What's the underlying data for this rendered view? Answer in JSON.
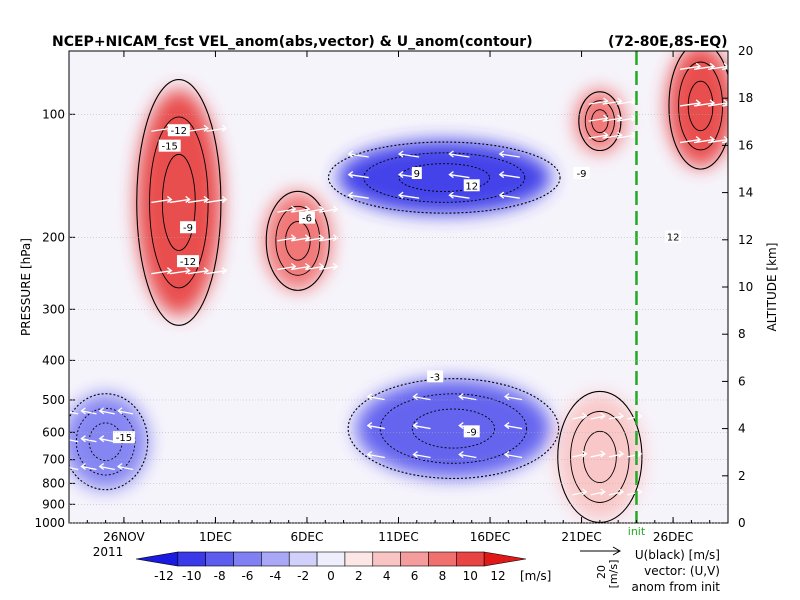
{
  "chart_data": {
    "type": "heatmap",
    "title": "NCEP+NICAM_fcst VEL_anom(abs,vector) & U_anom(contour)",
    "region": "(72-80E,8S-EQ)",
    "ylabel": "PRESSURE [hPa]",
    "ylabel_right": "ALTITUDE [km]",
    "yaxis": {
      "scale": "log",
      "range": [
        1000,
        70
      ],
      "ticks": [
        {
          "value": 100,
          "label": "100"
        },
        {
          "value": 200,
          "label": "200"
        },
        {
          "value": 300,
          "label": "300"
        },
        {
          "value": 400,
          "label": "400"
        },
        {
          "value": 500,
          "label": "500"
        },
        {
          "value": 600,
          "label": "600"
        },
        {
          "value": 700,
          "label": "700"
        },
        {
          "value": 800,
          "label": "800"
        },
        {
          "value": 900,
          "label": "900"
        },
        {
          "value": 1000,
          "label": "1000"
        }
      ]
    },
    "yaxis_right": {
      "range": [
        0,
        20
      ],
      "ticks": [
        "0",
        "2",
        "4",
        "6",
        "8",
        "10",
        "12",
        "14",
        "16",
        "18",
        "20"
      ]
    },
    "xaxis": {
      "range": [
        "2011-11-23",
        "2011-12-29"
      ],
      "ticks": [
        {
          "date": "2011-11-26",
          "label": "26NOV"
        },
        {
          "date": "2011-12-01",
          "label": "1DEC"
        },
        {
          "date": "2011-12-06",
          "label": "6DEC"
        },
        {
          "date": "2011-12-11",
          "label": "11DEC"
        },
        {
          "date": "2011-12-16",
          "label": "16DEC"
        },
        {
          "date": "2011-12-21",
          "label": "21DEC"
        },
        {
          "date": "2011-12-26",
          "label": "26DEC"
        }
      ],
      "year_label": "2011"
    },
    "init_line": {
      "date": "2011-12-24",
      "label": "init",
      "color": "#22aa22"
    },
    "colorbar": {
      "unit": "[m/s]",
      "levels": [
        -12,
        -10,
        -8,
        -6,
        -4,
        -2,
        0,
        2,
        4,
        6,
        8,
        10,
        12
      ],
      "tick_labels": [
        "-12",
        "-10",
        "-8",
        "-6",
        "-4",
        "-2",
        "0",
        "2",
        "4",
        "6",
        "8",
        "10",
        "12"
      ],
      "colors": [
        "#1a1ae0",
        "#3a3ae8",
        "#5c5cee",
        "#8080f2",
        "#a8a8f6",
        "#d0d0fa",
        "#eeeefc",
        "#fce6e6",
        "#f9c4c4",
        "#f59c9c",
        "#f07070",
        "#e84444",
        "#e01818"
      ]
    },
    "reference_vector": {
      "value_label": "20",
      "unit_label": "[m/s]"
    },
    "legend_notes": [
      "U(black) [m/s]",
      "vector: (U,V)",
      "anom from init"
    ],
    "anomaly_regions": [
      {
        "date_start": "2011-11-27",
        "date_end": "2011-12-01",
        "p_top": 90,
        "p_bottom": 300,
        "value": 10
      },
      {
        "date_start": "2011-12-04",
        "date_end": "2011-12-07",
        "p_top": 160,
        "p_bottom": 260,
        "value": 8
      },
      {
        "date_start": "2011-12-08",
        "date_end": "2011-12-19",
        "p_top": 120,
        "p_bottom": 170,
        "value": -10
      },
      {
        "date_start": "2011-12-09",
        "date_end": "2011-12-19",
        "p_top": 460,
        "p_bottom": 750,
        "value": -7
      },
      {
        "date_start": "2011-11-23",
        "date_end": "2011-11-27",
        "p_top": 500,
        "p_bottom": 800,
        "value": -5
      },
      {
        "date_start": "2011-12-21",
        "date_end": "2011-12-23",
        "p_top": 90,
        "p_bottom": 120,
        "value": 9
      },
      {
        "date_start": "2011-12-26",
        "date_end": "2011-12-29",
        "p_top": 70,
        "p_bottom": 130,
        "value": 10
      },
      {
        "date_start": "2011-12-20",
        "date_end": "2011-12-24",
        "p_top": 500,
        "p_bottom": 950,
        "value": 4
      }
    ],
    "contour_labels": [
      {
        "date": "2011-11-29",
        "p": 110,
        "label": "-12"
      },
      {
        "date": "2011-11-28.5",
        "p": 120,
        "label": "-15"
      },
      {
        "date": "2011-11-29.5",
        "p": 190,
        "label": "-9"
      },
      {
        "date": "2011-11-29.5",
        "p": 230,
        "label": "-12"
      },
      {
        "date": "2011-12-06",
        "p": 180,
        "label": "-6"
      },
      {
        "date": "2011-12-12",
        "p": 140,
        "label": "9"
      },
      {
        "date": "2011-12-15",
        "p": 150,
        "label": "12"
      },
      {
        "date": "2011-12-13",
        "p": 440,
        "label": "-3"
      },
      {
        "date": "2011-12-15",
        "p": 600,
        "label": "-9"
      },
      {
        "date": "2011-11-26",
        "p": 620,
        "label": "-15"
      },
      {
        "date": "2011-12-21",
        "p": 140,
        "label": "-9"
      },
      {
        "date": "2011-12-26",
        "p": 200,
        "label": "12"
      }
    ]
  }
}
